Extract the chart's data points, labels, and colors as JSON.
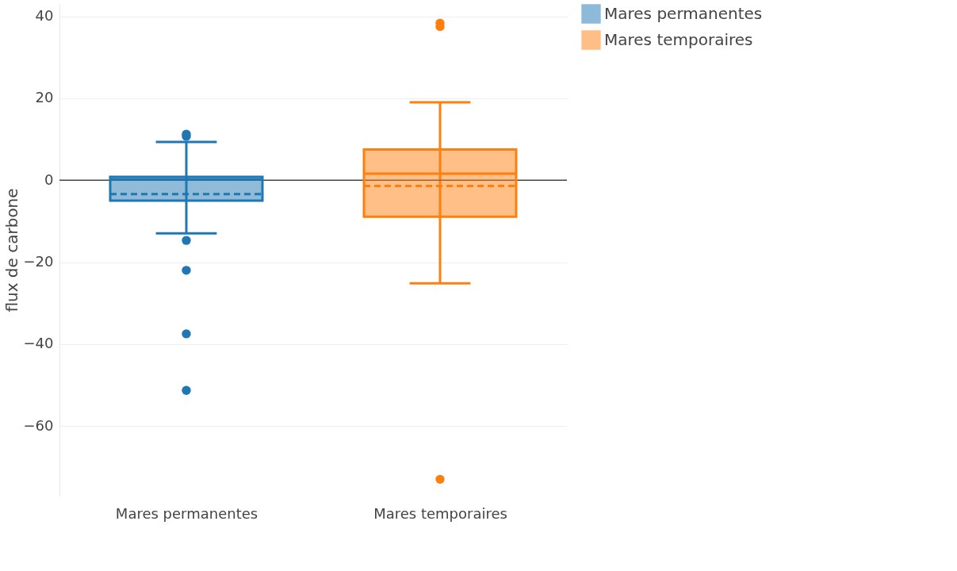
{
  "chart_data": {
    "type": "box",
    "ylabel": "flux de carbone",
    "categories": [
      "Mares permanentes",
      "Mares temporaires"
    ],
    "series": [
      {
        "name": "Mares permanentes",
        "color": "#1f77b4",
        "boxes": [
          {
            "low": -13,
            "q1": -5,
            "median": 0.2,
            "q3": 0.8,
            "high": 9.3,
            "mean": -3.4,
            "outliers": [
              10.7,
              11.2,
              -14.7,
              -22,
              -37.5,
              -51.3
            ]
          },
          null
        ]
      },
      {
        "name": "Mares temporaires",
        "color": "#ff7f0e",
        "boxes": [
          null,
          {
            "low": -25.2,
            "q1": -8.9,
            "median": 1.6,
            "q3": 7.5,
            "high": 19,
            "mean": -1.4,
            "outliers": [
              37.5,
              38.3,
              -73
            ]
          }
        ]
      }
    ],
    "ylim": [
      -77,
      43
    ],
    "yticks": [
      -60,
      -40,
      -20,
      0,
      20,
      40
    ],
    "ref_lines": [
      {
        "axis": "y",
        "value": 0,
        "color": "#444444"
      }
    ],
    "grid": "y",
    "legend": "top right"
  }
}
